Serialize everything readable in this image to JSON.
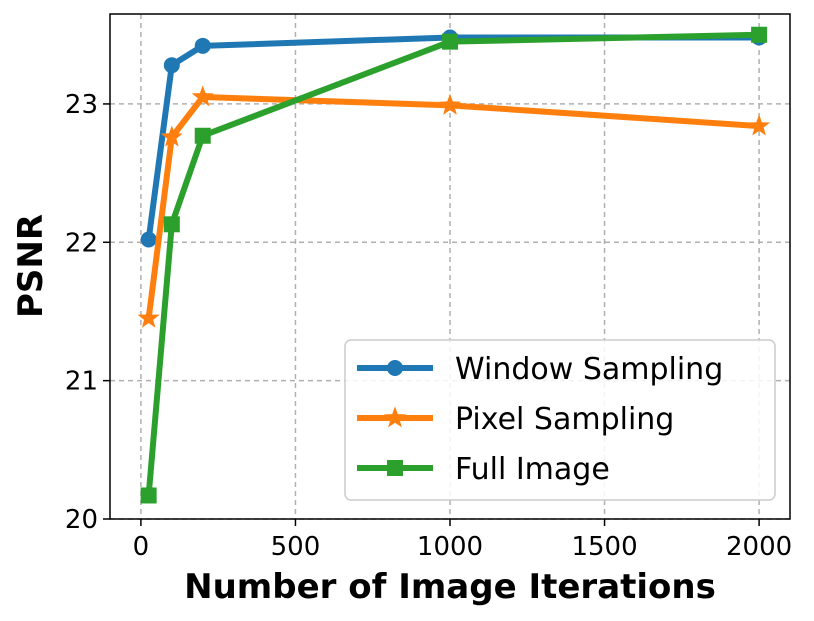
{
  "chart_data": {
    "type": "line",
    "title": "",
    "xlabel": "Number of Image Iterations",
    "ylabel": "PSNR",
    "xlim": [
      -100,
      2100
    ],
    "ylim": [
      20,
      23.65
    ],
    "xticks": [
      0,
      500,
      1000,
      1500,
      2000
    ],
    "xtick_labels": [
      "0",
      "500",
      "1000",
      "1500",
      "2000"
    ],
    "yticks": [
      20,
      21,
      22,
      23
    ],
    "ytick_labels": [
      "20",
      "21",
      "22",
      "23"
    ],
    "grid": true,
    "legend_position": "lower-right",
    "series": [
      {
        "name": "Window Sampling",
        "marker": "circle",
        "color": "#1f77b4",
        "x": [
          25,
          100,
          200,
          1000,
          2000
        ],
        "y": [
          22.02,
          23.28,
          23.42,
          23.48,
          23.48
        ]
      },
      {
        "name": "Pixel Sampling",
        "marker": "star",
        "color": "#ff7f0e",
        "x": [
          25,
          100,
          200,
          1000,
          2000
        ],
        "y": [
          21.45,
          22.76,
          23.05,
          22.99,
          22.84
        ]
      },
      {
        "name": "Full Image",
        "marker": "square",
        "color": "#2ca02c",
        "x": [
          25,
          100,
          200,
          1000,
          2000
        ],
        "y": [
          20.17,
          22.13,
          22.77,
          23.45,
          23.5
        ]
      }
    ]
  }
}
